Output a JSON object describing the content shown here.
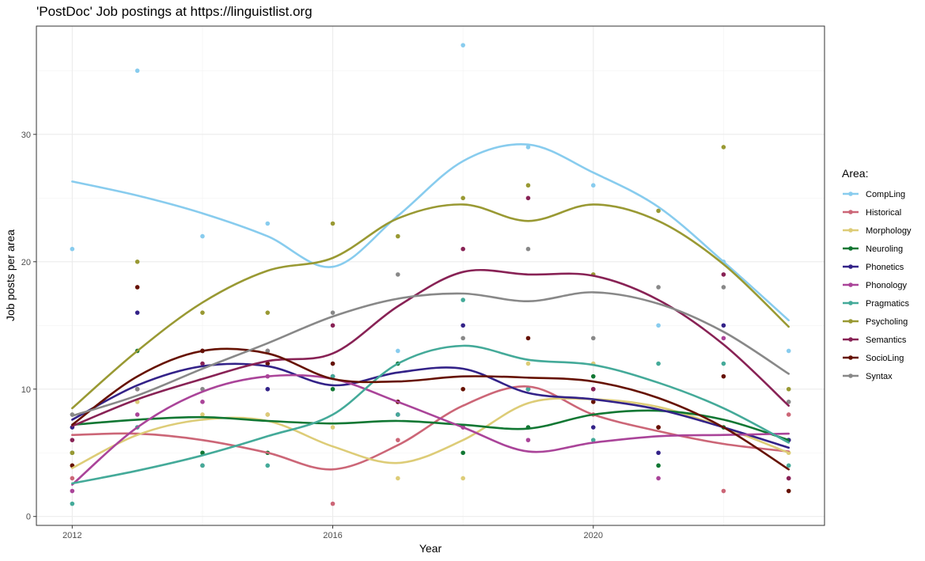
{
  "chart_data": {
    "type": "scatter",
    "title": "'PostDoc' Job postings at https://linguistlist.org",
    "xlabel": "Year",
    "ylabel": "Job posts per area",
    "xlim": [
      2011.45,
      2023.55
    ],
    "ylim": [
      -0.7,
      38.5
    ],
    "x_ticks": [
      2012,
      2016,
      2020
    ],
    "y_ticks": [
      0,
      10,
      20,
      30
    ],
    "grid": true,
    "legend": {
      "title": "Area:",
      "position": "right"
    },
    "series": [
      {
        "name": "CompLing",
        "color": "#88CCEE",
        "points": [
          [
            2012,
            21
          ],
          [
            2013,
            35
          ],
          [
            2014,
            22
          ],
          [
            2015,
            23
          ],
          [
            2016,
            12
          ],
          [
            2017,
            13
          ],
          [
            2018,
            37
          ],
          [
            2019,
            29
          ],
          [
            2020,
            26
          ],
          [
            2021,
            15
          ],
          [
            2022,
            20
          ],
          [
            2023,
            13
          ]
        ],
        "smooth": [
          [
            2012,
            26.3
          ],
          [
            2013,
            25.2
          ],
          [
            2014,
            23.8
          ],
          [
            2015,
            22.0
          ],
          [
            2016,
            19.6
          ],
          [
            2017,
            23.6
          ],
          [
            2018,
            27.9
          ],
          [
            2019,
            29.2
          ],
          [
            2020,
            27.0
          ],
          [
            2021,
            24.3
          ],
          [
            2022,
            20.0
          ],
          [
            2023,
            15.4
          ]
        ]
      },
      {
        "name": "Historical",
        "color": "#CC6677",
        "points": [
          [
            2012,
            3
          ],
          [
            2013,
            7
          ],
          [
            2014,
            4
          ],
          [
            2015,
            8
          ],
          [
            2016,
            1
          ],
          [
            2017,
            6
          ],
          [
            2018,
            7
          ],
          [
            2019,
            10
          ],
          [
            2020,
            8
          ],
          [
            2021,
            7
          ],
          [
            2022,
            2
          ],
          [
            2023,
            8
          ]
        ],
        "smooth": [
          [
            2012,
            6.4
          ],
          [
            2013,
            6.5
          ],
          [
            2014,
            6.0
          ],
          [
            2015,
            5.0
          ],
          [
            2016,
            3.7
          ],
          [
            2017,
            5.6
          ],
          [
            2018,
            8.7
          ],
          [
            2019,
            10.2
          ],
          [
            2020,
            8.0
          ],
          [
            2021,
            6.7
          ],
          [
            2022,
            5.7
          ],
          [
            2023,
            5.1
          ]
        ]
      },
      {
        "name": "Morphology",
        "color": "#DDCC77",
        "points": [
          [
            2012,
            4
          ],
          [
            2013,
            9
          ],
          [
            2014,
            8
          ],
          [
            2015,
            8
          ],
          [
            2016,
            7
          ],
          [
            2017,
            3
          ],
          [
            2018,
            3
          ],
          [
            2019,
            12
          ],
          [
            2020,
            12
          ],
          [
            2021,
            7
          ],
          [
            2022,
            7
          ],
          [
            2023,
            5
          ]
        ],
        "smooth": [
          [
            2012,
            3.8
          ],
          [
            2013,
            6.4
          ],
          [
            2014,
            7.6
          ],
          [
            2015,
            7.5
          ],
          [
            2016,
            5.5
          ],
          [
            2017,
            4.2
          ],
          [
            2018,
            6.0
          ],
          [
            2019,
            8.9
          ],
          [
            2020,
            9.2
          ],
          [
            2021,
            8.6
          ],
          [
            2022,
            7.0
          ],
          [
            2023,
            5.0
          ]
        ]
      },
      {
        "name": "Neuroling",
        "color": "#117733",
        "points": [
          [
            2012,
            5
          ],
          [
            2013,
            13
          ],
          [
            2014,
            5
          ],
          [
            2015,
            5
          ],
          [
            2016,
            10
          ],
          [
            2017,
            12
          ],
          [
            2018,
            5
          ],
          [
            2019,
            7
          ],
          [
            2020,
            11
          ],
          [
            2021,
            4
          ],
          [
            2022,
            7
          ],
          [
            2023,
            6
          ]
        ],
        "smooth": [
          [
            2012,
            7.2
          ],
          [
            2013,
            7.6
          ],
          [
            2014,
            7.8
          ],
          [
            2015,
            7.5
          ],
          [
            2016,
            7.3
          ],
          [
            2017,
            7.5
          ],
          [
            2018,
            7.2
          ],
          [
            2019,
            6.9
          ],
          [
            2020,
            8.0
          ],
          [
            2021,
            8.3
          ],
          [
            2022,
            7.6
          ],
          [
            2023,
            6.0
          ]
        ]
      },
      {
        "name": "Phonetics",
        "color": "#332288",
        "points": [
          [
            2012,
            7
          ],
          [
            2013,
            16
          ],
          [
            2014,
            13
          ],
          [
            2015,
            10
          ],
          [
            2016,
            11
          ],
          [
            2017,
            8
          ],
          [
            2018,
            15
          ],
          [
            2019,
            10
          ],
          [
            2020,
            7
          ],
          [
            2021,
            5
          ],
          [
            2022,
            15
          ],
          [
            2023,
            6
          ]
        ],
        "smooth": [
          [
            2012,
            7.6
          ],
          [
            2013,
            10.3
          ],
          [
            2014,
            11.8
          ],
          [
            2015,
            11.8
          ],
          [
            2016,
            10.3
          ],
          [
            2017,
            11.3
          ],
          [
            2018,
            11.6
          ],
          [
            2019,
            9.7
          ],
          [
            2020,
            9.2
          ],
          [
            2021,
            8.4
          ],
          [
            2022,
            7.0
          ],
          [
            2023,
            5.4
          ]
        ]
      },
      {
        "name": "Phonology",
        "color": "#AA4499",
        "points": [
          [
            2012,
            2
          ],
          [
            2013,
            8
          ],
          [
            2014,
            9
          ],
          [
            2015,
            11
          ],
          [
            2016,
            11
          ],
          [
            2017,
            8
          ],
          [
            2018,
            7
          ],
          [
            2019,
            6
          ],
          [
            2020,
            10
          ],
          [
            2021,
            3
          ],
          [
            2022,
            14
          ],
          [
            2023,
            3
          ]
        ],
        "smooth": [
          [
            2012,
            2.5
          ],
          [
            2013,
            7.0
          ],
          [
            2014,
            9.8
          ],
          [
            2015,
            11.0
          ],
          [
            2016,
            10.8
          ],
          [
            2017,
            9.0
          ],
          [
            2018,
            7.0
          ],
          [
            2019,
            5.1
          ],
          [
            2020,
            5.8
          ],
          [
            2021,
            6.3
          ],
          [
            2022,
            6.4
          ],
          [
            2023,
            6.5
          ]
        ]
      },
      {
        "name": "Pragmatics",
        "color": "#44AA99",
        "points": [
          [
            2012,
            1
          ],
          [
            2013,
            7
          ],
          [
            2014,
            4
          ],
          [
            2015,
            4
          ],
          [
            2016,
            11
          ],
          [
            2017,
            8
          ],
          [
            2018,
            17
          ],
          [
            2019,
            10
          ],
          [
            2020,
            6
          ],
          [
            2021,
            12
          ],
          [
            2022,
            12
          ],
          [
            2023,
            4
          ]
        ],
        "smooth": [
          [
            2012,
            2.6
          ],
          [
            2013,
            3.6
          ],
          [
            2014,
            4.8
          ],
          [
            2015,
            6.3
          ],
          [
            2016,
            8.0
          ],
          [
            2017,
            12.0
          ],
          [
            2018,
            13.4
          ],
          [
            2019,
            12.3
          ],
          [
            2020,
            11.9
          ],
          [
            2021,
            10.5
          ],
          [
            2022,
            8.5
          ],
          [
            2023,
            5.8
          ]
        ]
      },
      {
        "name": "Psycholing",
        "color": "#999933",
        "points": [
          [
            2012,
            5
          ],
          [
            2013,
            20
          ],
          [
            2014,
            16
          ],
          [
            2015,
            16
          ],
          [
            2016,
            23
          ],
          [
            2017,
            22
          ],
          [
            2018,
            25
          ],
          [
            2019,
            26
          ],
          [
            2020,
            19
          ],
          [
            2021,
            24
          ],
          [
            2022,
            29
          ],
          [
            2023,
            10
          ]
        ],
        "smooth": [
          [
            2012,
            8.5
          ],
          [
            2013,
            13.0
          ],
          [
            2014,
            16.8
          ],
          [
            2015,
            19.3
          ],
          [
            2016,
            20.3
          ],
          [
            2017,
            23.4
          ],
          [
            2018,
            24.5
          ],
          [
            2019,
            23.2
          ],
          [
            2020,
            24.5
          ],
          [
            2021,
            23.2
          ],
          [
            2022,
            19.8
          ],
          [
            2023,
            14.9
          ]
        ]
      },
      {
        "name": "Semantics",
        "color": "#882255",
        "points": [
          [
            2012,
            6
          ],
          [
            2013,
            10
          ],
          [
            2014,
            12
          ],
          [
            2015,
            13
          ],
          [
            2016,
            15
          ],
          [
            2017,
            9
          ],
          [
            2018,
            21
          ],
          [
            2019,
            25
          ],
          [
            2020,
            10
          ],
          [
            2021,
            7
          ],
          [
            2022,
            19
          ],
          [
            2023,
            3
          ]
        ],
        "smooth": [
          [
            2012,
            7.1
          ],
          [
            2013,
            9.2
          ],
          [
            2014,
            10.8
          ],
          [
            2015,
            12.2
          ],
          [
            2016,
            12.8
          ],
          [
            2017,
            16.5
          ],
          [
            2018,
            19.2
          ],
          [
            2019,
            19.0
          ],
          [
            2020,
            18.9
          ],
          [
            2021,
            17.0
          ],
          [
            2022,
            13.5
          ],
          [
            2023,
            8.7
          ]
        ]
      },
      {
        "name": "SocioLing",
        "color": "#661100",
        "points": [
          [
            2012,
            4
          ],
          [
            2013,
            18
          ],
          [
            2014,
            13
          ],
          [
            2015,
            12
          ],
          [
            2016,
            12
          ],
          [
            2017,
            9
          ],
          [
            2018,
            10
          ],
          [
            2019,
            14
          ],
          [
            2020,
            9
          ],
          [
            2021,
            7
          ],
          [
            2022,
            11
          ],
          [
            2023,
            2
          ]
        ],
        "smooth": [
          [
            2012,
            7.2
          ],
          [
            2013,
            11.0
          ],
          [
            2014,
            13.0
          ],
          [
            2015,
            12.8
          ],
          [
            2016,
            10.8
          ],
          [
            2017,
            10.6
          ],
          [
            2018,
            11.0
          ],
          [
            2019,
            10.9
          ],
          [
            2020,
            10.6
          ],
          [
            2021,
            9.3
          ],
          [
            2022,
            7.0
          ],
          [
            2023,
            3.7
          ]
        ]
      },
      {
        "name": "Syntax",
        "color": "#888888",
        "points": [
          [
            2012,
            8
          ],
          [
            2013,
            10
          ],
          [
            2014,
            10
          ],
          [
            2015,
            13
          ],
          [
            2016,
            16
          ],
          [
            2017,
            19
          ],
          [
            2018,
            14
          ],
          [
            2019,
            21
          ],
          [
            2020,
            14
          ],
          [
            2021,
            18
          ],
          [
            2022,
            18
          ],
          [
            2023,
            9
          ]
        ],
        "smooth": [
          [
            2012,
            7.9
          ],
          [
            2013,
            9.5
          ],
          [
            2014,
            11.6
          ],
          [
            2015,
            13.6
          ],
          [
            2016,
            15.7
          ],
          [
            2017,
            17.1
          ],
          [
            2018,
            17.5
          ],
          [
            2019,
            16.9
          ],
          [
            2020,
            17.6
          ],
          [
            2021,
            16.7
          ],
          [
            2022,
            14.5
          ],
          [
            2023,
            11.2
          ]
        ]
      }
    ]
  }
}
